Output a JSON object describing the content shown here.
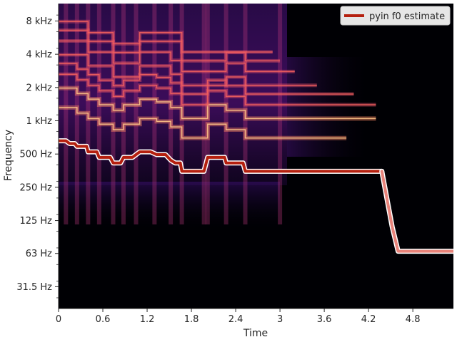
{
  "chart_data": {
    "type": "spectrogram",
    "colormap": "magma",
    "xlabel": "Time",
    "ylabel": "Frequency",
    "xlim": [
      0,
      5.35
    ],
    "ylim": [
      20,
      11500
    ],
    "y_scale": "log",
    "x_ticks": [
      {
        "value": 0,
        "label": "0"
      },
      {
        "value": 0.6,
        "label": "0.6"
      },
      {
        "value": 1.2,
        "label": "1.2"
      },
      {
        "value": 1.8,
        "label": "1.8"
      },
      {
        "value": 2.4,
        "label": "2.4"
      },
      {
        "value": 3.0,
        "label": "3"
      },
      {
        "value": 3.6,
        "label": "3.6"
      },
      {
        "value": 4.2,
        "label": "4.2"
      },
      {
        "value": 4.8,
        "label": "4.8"
      }
    ],
    "y_ticks": [
      {
        "value": 8000,
        "label": "8 kHz"
      },
      {
        "value": 4000,
        "label": "4 kHz"
      },
      {
        "value": 2000,
        "label": "2 kHz"
      },
      {
        "value": 1000,
        "label": "1 kHz"
      },
      {
        "value": 500,
        "label": "500 Hz"
      },
      {
        "value": 250,
        "label": "250 Hz"
      },
      {
        "value": 125,
        "label": "125 Hz"
      },
      {
        "value": 63,
        "label": "63 Hz"
      },
      {
        "value": 31.5,
        "label": "31.5 Hz"
      }
    ],
    "legend": {
      "position": "top-right",
      "entries": [
        {
          "label": "pyin f0 estimate",
          "color": "#b5200f"
        }
      ]
    },
    "series": [
      {
        "name": "pyin f0 estimate",
        "color": "#b5200f",
        "points": [
          [
            0.0,
            659
          ],
          [
            0.1,
            659
          ],
          [
            0.15,
            622
          ],
          [
            0.22,
            622
          ],
          [
            0.25,
            587
          ],
          [
            0.32,
            587
          ],
          [
            0.38,
            587
          ],
          [
            0.4,
            523
          ],
          [
            0.52,
            523
          ],
          [
            0.55,
            466
          ],
          [
            0.7,
            466
          ],
          [
            0.74,
            415
          ],
          [
            0.84,
            415
          ],
          [
            0.88,
            466
          ],
          [
            1.0,
            466
          ],
          [
            1.05,
            494
          ],
          [
            1.1,
            523
          ],
          [
            1.25,
            523
          ],
          [
            1.33,
            494
          ],
          [
            1.45,
            494
          ],
          [
            1.52,
            440
          ],
          [
            1.58,
            415
          ],
          [
            1.65,
            415
          ],
          [
            1.67,
            349
          ],
          [
            1.97,
            349
          ],
          [
            2.0,
            415
          ],
          [
            2.02,
            466
          ],
          [
            2.25,
            466
          ],
          [
            2.27,
            415
          ],
          [
            2.5,
            415
          ],
          [
            2.53,
            349
          ],
          [
            3.2,
            349
          ],
          [
            4.0,
            349
          ],
          [
            4.38,
            349
          ]
        ]
      },
      {
        "name": "",
        "color": "#e8837a",
        "unvoiced": true,
        "points": [
          [
            4.38,
            349
          ],
          [
            4.46,
            180
          ],
          [
            4.52,
            110
          ],
          [
            4.6,
            66
          ],
          [
            5.35,
            66
          ]
        ]
      }
    ],
    "harmonic_tracks_hz": [
      [
        [
          0.0,
          1318
        ],
        [
          0.25,
          1174
        ],
        [
          0.4,
          1046
        ],
        [
          0.55,
          932
        ],
        [
          0.74,
          830
        ],
        [
          0.88,
          932
        ],
        [
          1.1,
          1046
        ],
        [
          1.33,
          988
        ],
        [
          1.52,
          880
        ],
        [
          1.67,
          698
        ],
        [
          1.97,
          698
        ],
        [
          2.02,
          932
        ],
        [
          2.27,
          830
        ],
        [
          2.53,
          698
        ],
        [
          3.9,
          698
        ]
      ],
      [
        [
          0.0,
          1977
        ],
        [
          0.25,
          1761
        ],
        [
          0.4,
          1569
        ],
        [
          0.55,
          1398
        ],
        [
          0.74,
          1245
        ],
        [
          0.88,
          1398
        ],
        [
          1.1,
          1569
        ],
        [
          1.33,
          1482
        ],
        [
          1.52,
          1320
        ],
        [
          1.67,
          1047
        ],
        [
          1.97,
          1047
        ],
        [
          2.02,
          1398
        ],
        [
          2.27,
          1245
        ],
        [
          2.53,
          1047
        ],
        [
          4.3,
          1047
        ]
      ],
      [
        [
          0.0,
          2636
        ],
        [
          0.25,
          2348
        ],
        [
          0.4,
          2092
        ],
        [
          0.55,
          1864
        ],
        [
          0.74,
          1660
        ],
        [
          0.88,
          1864
        ],
        [
          1.1,
          2092
        ],
        [
          1.33,
          1976
        ],
        [
          1.52,
          1760
        ],
        [
          1.67,
          1396
        ],
        [
          1.97,
          1396
        ],
        [
          2.02,
          1864
        ],
        [
          2.27,
          1660
        ],
        [
          2.53,
          1396
        ],
        [
          4.3,
          1396
        ]
      ],
      [
        [
          0.0,
          3295
        ],
        [
          0.25,
          2935
        ],
        [
          0.4,
          2615
        ],
        [
          0.55,
          2330
        ],
        [
          0.74,
          2075
        ],
        [
          0.88,
          2330
        ],
        [
          1.1,
          2615
        ],
        [
          1.33,
          2470
        ],
        [
          1.52,
          2200
        ],
        [
          1.67,
          1745
        ],
        [
          1.97,
          1745
        ],
        [
          2.02,
          2330
        ],
        [
          2.27,
          2075
        ],
        [
          2.53,
          1745
        ],
        [
          4.0,
          1745
        ]
      ],
      [
        [
          0.0,
          3954
        ],
        [
          0.4,
          3138
        ],
        [
          0.74,
          2490
        ],
        [
          1.1,
          3138
        ],
        [
          1.52,
          2640
        ],
        [
          1.67,
          2094
        ],
        [
          1.97,
          2094
        ],
        [
          2.27,
          2490
        ],
        [
          2.53,
          2094
        ],
        [
          3.5,
          2094
        ]
      ],
      [
        [
          0.0,
          5272
        ],
        [
          0.4,
          4184
        ],
        [
          0.74,
          3320
        ],
        [
          1.1,
          4184
        ],
        [
          1.52,
          3520
        ],
        [
          1.67,
          2792
        ],
        [
          2.27,
          3320
        ],
        [
          2.53,
          2792
        ],
        [
          3.2,
          2792
        ]
      ],
      [
        [
          0.0,
          6590
        ],
        [
          0.4,
          5230
        ],
        [
          0.74,
          4150
        ],
        [
          1.1,
          5230
        ],
        [
          1.67,
          3490
        ],
        [
          2.27,
          4150
        ],
        [
          2.53,
          3490
        ],
        [
          3.0,
          3490
        ]
      ],
      [
        [
          0.0,
          7908
        ],
        [
          0.4,
          6276
        ],
        [
          0.74,
          4980
        ],
        [
          1.1,
          6276
        ],
        [
          1.67,
          4188
        ],
        [
          2.53,
          4188
        ],
        [
          2.9,
          4188
        ]
      ]
    ],
    "onsets_s": [
      0.1,
      0.25,
      0.4,
      0.55,
      0.74,
      0.88,
      1.05,
      1.3,
      1.52,
      1.67,
      1.97,
      2.02,
      2.27,
      2.53,
      3.0
    ],
    "grid": false
  }
}
